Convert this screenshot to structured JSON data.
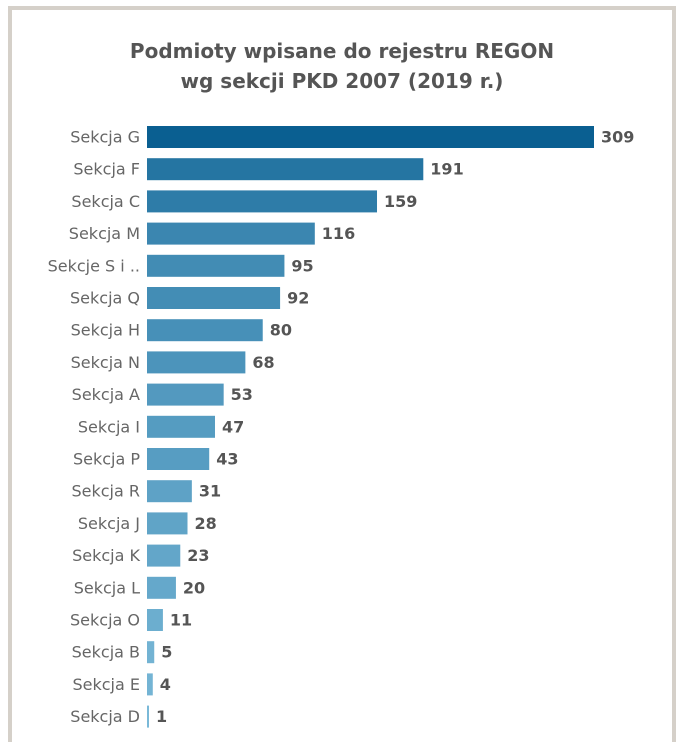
{
  "chart_data": {
    "type": "bar",
    "orientation": "horizontal",
    "title": "Podmioty wpisane do rejestru REGON",
    "subtitle": "wg sekcji PKD 2007 (2019 r.)",
    "categories": [
      "Sekcja G",
      "Sekcja F",
      "Sekcja C",
      "Sekcja M",
      "Sekcje S i ..",
      "Sekcja Q",
      "Sekcja H",
      "Sekcja N",
      "Sekcja A",
      "Sekcja I",
      "Sekcja P",
      "Sekcja R",
      "Sekcja J",
      "Sekcja K",
      "Sekcja L",
      "Sekcja O",
      "Sekcja B",
      "Sekcja E",
      "Sekcja D"
    ],
    "values": [
      309,
      191,
      159,
      116,
      95,
      92,
      80,
      68,
      53,
      47,
      43,
      31,
      28,
      23,
      20,
      11,
      5,
      4,
      1
    ],
    "xlim": [
      0,
      309
    ],
    "grid": false,
    "legend": "none",
    "data_labels": true,
    "colors": {
      "max": "#0a5f91",
      "min": "#7fbddb"
    }
  }
}
